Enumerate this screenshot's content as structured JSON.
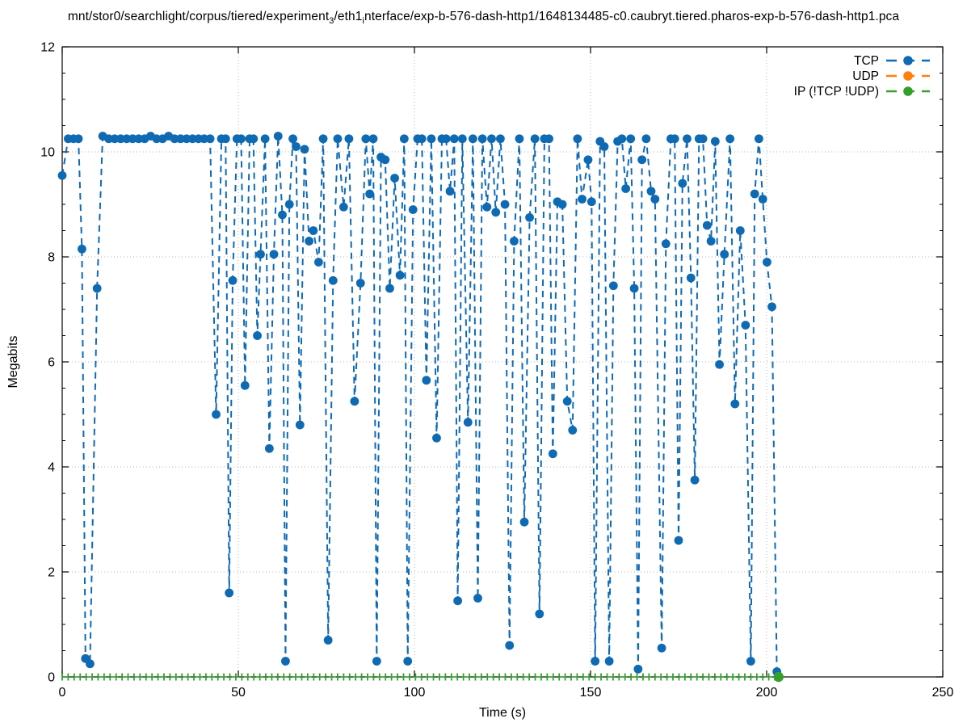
{
  "title": {
    "plain": "mnt/stor0/searchlight/corpus/tiered/experiment_3/eth1_interface/exp-b-576-dash-http1/1648134485-c0.caubryt.tiered.pharos-exp-b-576-dash-http1.pca",
    "segments": [
      {
        "text": "mnt/stor0/searchlight/corpus/tiered/experiment"
      },
      {
        "sub": "3"
      },
      {
        "text": "/eth1"
      },
      {
        "sub": "i"
      },
      {
        "text": "nterface/exp-b-576-dash-http1/1648134485-c0.caubryt.tiered.pharos-exp-b-576-dash-http1.pca"
      }
    ]
  },
  "axes": {
    "x_label": "Time (s)",
    "y_label": "Megabits",
    "x_ticks": [
      0,
      50,
      100,
      150,
      200,
      250
    ],
    "y_ticks": [
      0,
      2,
      4,
      6,
      8,
      10,
      12
    ],
    "x_range": [
      0,
      250
    ],
    "y_range": [
      0,
      12
    ],
    "y_minor_step": 0.5,
    "grid": "dotted"
  },
  "legend": {
    "position": "top-right",
    "entries": [
      {
        "label": "TCP",
        "color": "#0f6ab4"
      },
      {
        "label": "UDP",
        "color": "#ff7f0e"
      },
      {
        "label": "IP (!TCP  !UDP)",
        "color": "#33a02c"
      }
    ]
  },
  "chart_data": {
    "type": "line",
    "style": "dashed linespoints (gnuplot)",
    "xlabel": "Time (s)",
    "ylabel": "Megabits",
    "xlim": [
      0,
      250
    ],
    "ylim": [
      0,
      12
    ],
    "series": [
      {
        "name": "TCP",
        "color": "#0f6ab4",
        "points": [
          [
            0,
            9.55
          ],
          [
            1.7,
            10.25
          ],
          [
            3.2,
            10.25
          ],
          [
            4.6,
            10.25
          ],
          [
            5.6,
            8.15
          ],
          [
            6.6,
            0.35
          ],
          [
            7.9,
            0.25
          ],
          [
            9.9,
            7.4
          ],
          [
            11.5,
            10.3
          ],
          [
            13.2,
            10.25
          ],
          [
            14.9,
            10.25
          ],
          [
            16.6,
            10.25
          ],
          [
            18.3,
            10.25
          ],
          [
            20,
            10.25
          ],
          [
            21.7,
            10.25
          ],
          [
            23.4,
            10.25
          ],
          [
            25.1,
            10.3
          ],
          [
            26.8,
            10.25
          ],
          [
            28.5,
            10.25
          ],
          [
            30.2,
            10.3
          ],
          [
            31.9,
            10.25
          ],
          [
            33.6,
            10.25
          ],
          [
            35.3,
            10.25
          ],
          [
            37,
            10.25
          ],
          [
            38.7,
            10.25
          ],
          [
            40.3,
            10.25
          ],
          [
            42,
            10.25
          ],
          [
            43.7,
            5.0
          ],
          [
            45.2,
            10.25
          ],
          [
            46.4,
            10.25
          ],
          [
            47.4,
            1.6
          ],
          [
            48.4,
            7.55
          ],
          [
            49.6,
            10.25
          ],
          [
            50.8,
            10.25
          ],
          [
            51.9,
            5.55
          ],
          [
            53.2,
            10.25
          ],
          [
            54.3,
            10.25
          ],
          [
            55.4,
            6.5
          ],
          [
            56.3,
            8.05
          ],
          [
            57.6,
            10.25
          ],
          [
            58.8,
            4.35
          ],
          [
            60.1,
            8.05
          ],
          [
            61.3,
            10.3
          ],
          [
            62.5,
            8.8
          ],
          [
            63.4,
            0.3
          ],
          [
            64.5,
            9.0
          ],
          [
            65.5,
            10.25
          ],
          [
            66.4,
            10.1
          ],
          [
            67.5,
            4.8
          ],
          [
            68.8,
            10.05
          ],
          [
            70.1,
            8.3
          ],
          [
            71.3,
            8.5
          ],
          [
            72.8,
            7.9
          ],
          [
            74.1,
            10.25
          ],
          [
            75.5,
            0.7
          ],
          [
            76.9,
            7.55
          ],
          [
            78.2,
            10.25
          ],
          [
            79.9,
            8.95
          ],
          [
            81.4,
            10.25
          ],
          [
            83,
            5.25
          ],
          [
            84.7,
            7.5
          ],
          [
            86.2,
            10.25
          ],
          [
            87.3,
            9.2
          ],
          [
            88.3,
            10.25
          ],
          [
            89.3,
            0.3
          ],
          [
            90.5,
            9.9
          ],
          [
            91.7,
            9.85
          ],
          [
            93,
            7.4
          ],
          [
            94.4,
            9.5
          ],
          [
            95.9,
            7.65
          ],
          [
            97.1,
            10.25
          ],
          [
            98.1,
            0.3
          ],
          [
            99.6,
            8.9
          ],
          [
            100.9,
            10.25
          ],
          [
            102.1,
            10.25
          ],
          [
            103.4,
            5.65
          ],
          [
            104.8,
            10.25
          ],
          [
            106.3,
            4.55
          ],
          [
            107.8,
            10.25
          ],
          [
            109,
            10.25
          ],
          [
            110.1,
            9.25
          ],
          [
            111.3,
            10.25
          ],
          [
            112.3,
            1.45
          ],
          [
            113.6,
            10.25
          ],
          [
            115.2,
            4.85
          ],
          [
            116.6,
            10.25
          ],
          [
            118,
            1.5
          ],
          [
            119.3,
            10.25
          ],
          [
            120.6,
            8.95
          ],
          [
            121.9,
            10.25
          ],
          [
            123.1,
            8.85
          ],
          [
            124.4,
            10.25
          ],
          [
            125.7,
            9.0
          ],
          [
            127,
            0.6
          ],
          [
            128.3,
            8.3
          ],
          [
            129.8,
            10.25
          ],
          [
            131.2,
            2.95
          ],
          [
            132.7,
            8.75
          ],
          [
            134.2,
            10.25
          ],
          [
            135.5,
            1.2
          ],
          [
            136.9,
            10.25
          ],
          [
            138.2,
            10.25
          ],
          [
            139.3,
            4.25
          ],
          [
            140.6,
            9.05
          ],
          [
            142,
            9.0
          ],
          [
            143.4,
            5.25
          ],
          [
            144.9,
            4.7
          ],
          [
            146.3,
            10.25
          ],
          [
            147.6,
            9.1
          ],
          [
            149.3,
            9.85
          ],
          [
            150.3,
            9.05
          ],
          [
            151.3,
            0.3
          ],
          [
            152.7,
            10.2
          ],
          [
            153.9,
            10.1
          ],
          [
            155.3,
            0.3
          ],
          [
            156.5,
            7.45
          ],
          [
            157.7,
            10.2
          ],
          [
            158.9,
            10.25
          ],
          [
            160,
            9.3
          ],
          [
            161.4,
            10.25
          ],
          [
            162.4,
            7.4
          ],
          [
            163.5,
            0.15
          ],
          [
            164.6,
            9.85
          ],
          [
            165.8,
            10.25
          ],
          [
            167.2,
            9.25
          ],
          [
            168.3,
            9.1
          ],
          [
            170.2,
            0.55
          ],
          [
            171.4,
            8.25
          ],
          [
            172.8,
            10.25
          ],
          [
            173.9,
            10.25
          ],
          [
            175,
            2.6
          ],
          [
            176.1,
            9.4
          ],
          [
            177.4,
            10.25
          ],
          [
            178.5,
            7.6
          ],
          [
            179.6,
            3.75
          ],
          [
            180.8,
            10.25
          ],
          [
            181.9,
            10.25
          ],
          [
            183.1,
            8.6
          ],
          [
            184.2,
            8.3
          ],
          [
            185.4,
            10.2
          ],
          [
            186.6,
            5.95
          ],
          [
            188,
            8.05
          ],
          [
            189.6,
            10.25
          ],
          [
            191,
            5.2
          ],
          [
            192.5,
            8.5
          ],
          [
            194,
            6.7
          ],
          [
            195.5,
            0.3
          ],
          [
            196.6,
            9.2
          ],
          [
            197.8,
            10.25
          ],
          [
            198.9,
            9.1
          ],
          [
            200.1,
            7.9
          ],
          [
            201.5,
            7.05
          ],
          [
            202.9,
            0.1
          ]
        ]
      },
      {
        "name": "UDP",
        "color": "#ff7f0e",
        "points": [],
        "note_visible_in_plot": false
      },
      {
        "name": "IP (!TCP  !UDP)",
        "color": "#33a02c",
        "constant_value": 0,
        "t_start": 0,
        "t_end": 203.4,
        "marker_interval_s": 1.7,
        "end_point": [
          203.4,
          0
        ]
      }
    ]
  }
}
